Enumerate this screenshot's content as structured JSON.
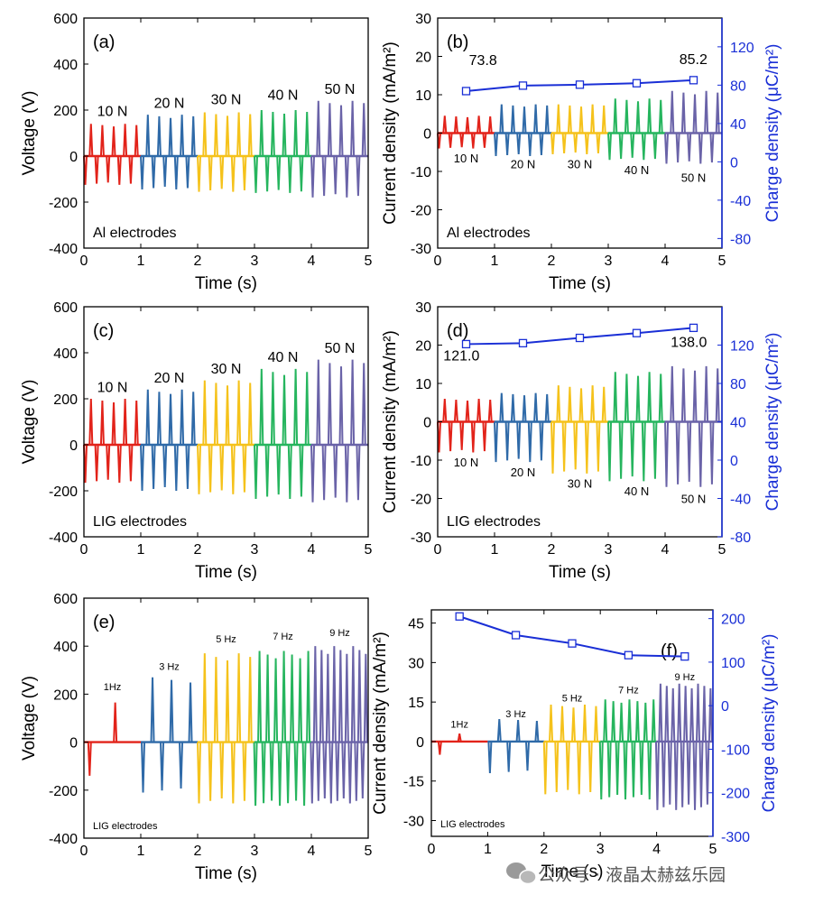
{
  "colors": {
    "red": "#e2231a",
    "blue": "#2f6aa8",
    "yellow": "#f5c21b",
    "green": "#26b55e",
    "purple": "#6a63a8",
    "charge": "#1a2fd6",
    "axis": "#000000"
  },
  "watermark": {
    "text": "公众号 · 液晶太赫兹乐园",
    "icon": "wechat-icon"
  },
  "chart_data": [
    {
      "id": "a",
      "type": "line",
      "panel_label": "(a)",
      "xlabel": "Time (s)",
      "ylabel": "Voltage (V)",
      "xlim": [
        0,
        5
      ],
      "ylim": [
        -400,
        600
      ],
      "xticks": [
        0,
        1,
        2,
        3,
        4,
        5
      ],
      "yticks": [
        -400,
        -200,
        0,
        200,
        400,
        600
      ],
      "annotation": "Al electrodes",
      "label_size": "medium",
      "segments": [
        {
          "name": "10 N",
          "color": "red",
          "t0": 0,
          "t1": 1,
          "n": 5,
          "pos": 140,
          "neg": -125,
          "label_y": 195
        },
        {
          "name": "20 N",
          "color": "blue",
          "t0": 1,
          "t1": 2,
          "n": 5,
          "pos": 180,
          "neg": -145,
          "label_y": 230
        },
        {
          "name": "30 N",
          "color": "yellow",
          "t0": 2,
          "t1": 3,
          "n": 5,
          "pos": 190,
          "neg": -155,
          "label_y": 245
        },
        {
          "name": "40 N",
          "color": "green",
          "t0": 3,
          "t1": 4,
          "n": 5,
          "pos": 200,
          "neg": -160,
          "label_y": 265
        },
        {
          "name": "50 N",
          "color": "purple",
          "t0": 4,
          "t1": 5,
          "n": 5,
          "pos": 240,
          "neg": -180,
          "label_y": 290
        }
      ]
    },
    {
      "id": "b",
      "type": "line",
      "panel_label": "(b)",
      "xlabel": "Time (s)",
      "ylabel": "Current density (mA/m²)",
      "y2label": "Charge density (μC/m²)",
      "xlim": [
        0,
        5
      ],
      "ylim": [
        -30,
        30
      ],
      "y2lim": [
        -90,
        150
      ],
      "xticks": [
        0,
        1,
        2,
        3,
        4,
        5
      ],
      "yticks": [
        -30,
        -20,
        -10,
        0,
        10,
        20,
        30
      ],
      "y2ticks": [
        -80,
        -40,
        0,
        40,
        80,
        120
      ],
      "annotation": "Al electrodes",
      "label_size": "medium",
      "segments": [
        {
          "name": "10 N",
          "color": "red",
          "t0": 0,
          "t1": 1,
          "n": 5,
          "pos": 4.5,
          "neg": -4,
          "label_y": -6.5
        },
        {
          "name": "20 N",
          "color": "blue",
          "t0": 1,
          "t1": 2,
          "n": 5,
          "pos": 7.5,
          "neg": -6,
          "label_y": -8
        },
        {
          "name": "30 N",
          "color": "yellow",
          "t0": 2,
          "t1": 3,
          "n": 5,
          "pos": 7.5,
          "neg": -5.5,
          "label_y": -8
        },
        {
          "name": "40 N",
          "color": "green",
          "t0": 3,
          "t1": 4,
          "n": 5,
          "pos": 9,
          "neg": -7,
          "label_y": -9.5
        },
        {
          "name": "50 N",
          "color": "purple",
          "t0": 4,
          "t1": 5,
          "n": 5,
          "pos": 11,
          "neg": -8,
          "label_y": -11.5
        }
      ],
      "charge": {
        "x": [
          0.5,
          1.5,
          2.5,
          3.5,
          4.5
        ],
        "values": [
          73.8,
          79.5,
          80.5,
          82.0,
          85.2
        ]
      },
      "value_labels": [
        {
          "text": "73.8",
          "x": 0.55,
          "y": 101
        },
        {
          "text": "85.2",
          "x": 4.25,
          "y": 102
        }
      ]
    },
    {
      "id": "c",
      "type": "line",
      "panel_label": "(c)",
      "xlabel": "Time (s)",
      "ylabel": "Voltage (V)",
      "xlim": [
        0,
        5
      ],
      "ylim": [
        -400,
        600
      ],
      "xticks": [
        0,
        1,
        2,
        3,
        4,
        5
      ],
      "yticks": [
        -400,
        -200,
        0,
        200,
        400,
        600
      ],
      "annotation": "LIG electrodes",
      "label_size": "medium",
      "segments": [
        {
          "name": "10 N",
          "color": "red",
          "t0": 0,
          "t1": 1,
          "n": 5,
          "pos": 200,
          "neg": -165,
          "label_y": 250
        },
        {
          "name": "20 N",
          "color": "blue",
          "t0": 1,
          "t1": 2,
          "n": 5,
          "pos": 240,
          "neg": -200,
          "label_y": 290
        },
        {
          "name": "30 N",
          "color": "yellow",
          "t0": 2,
          "t1": 3,
          "n": 5,
          "pos": 280,
          "neg": -215,
          "label_y": 330
        },
        {
          "name": "40 N",
          "color": "green",
          "t0": 3,
          "t1": 4,
          "n": 5,
          "pos": 330,
          "neg": -235,
          "label_y": 380
        },
        {
          "name": "50 N",
          "color": "purple",
          "t0": 4,
          "t1": 5,
          "n": 5,
          "pos": 370,
          "neg": -250,
          "label_y": 420
        }
      ]
    },
    {
      "id": "d",
      "type": "line",
      "panel_label": "(d)",
      "xlabel": "Time (s)",
      "ylabel": "Current density (mA/m²)",
      "y2label": "Charge density (μC/m²)",
      "xlim": [
        0,
        5
      ],
      "ylim": [
        -30,
        30
      ],
      "y2lim": [
        -80,
        160
      ],
      "xticks": [
        0,
        1,
        2,
        3,
        4,
        5
      ],
      "yticks": [
        -30,
        -20,
        -10,
        0,
        10,
        20,
        30
      ],
      "y2ticks": [
        -80,
        -40,
        0,
        40,
        80,
        120
      ],
      "annotation": "LIG electrodes",
      "label_size": "medium",
      "segments": [
        {
          "name": "10 N",
          "color": "red",
          "t0": 0,
          "t1": 1,
          "n": 5,
          "pos": 6,
          "neg": -8,
          "label_y": -10.5
        },
        {
          "name": "20 N",
          "color": "blue",
          "t0": 1,
          "t1": 2,
          "n": 5,
          "pos": 7.5,
          "neg": -10.5,
          "label_y": -13
        },
        {
          "name": "30 N",
          "color": "yellow",
          "t0": 2,
          "t1": 3,
          "n": 5,
          "pos": 9.5,
          "neg": -13.5,
          "label_y": -16
        },
        {
          "name": "40 N",
          "color": "green",
          "t0": 3,
          "t1": 4,
          "n": 5,
          "pos": 13,
          "neg": -15.5,
          "label_y": -18
        },
        {
          "name": "50 N",
          "color": "purple",
          "t0": 4,
          "t1": 5,
          "n": 5,
          "pos": 14.5,
          "neg": -17,
          "label_y": -20
        }
      ],
      "charge": {
        "x": [
          0.5,
          1.5,
          2.5,
          3.5,
          4.5
        ],
        "values": [
          121.0,
          122.0,
          127.5,
          132.5,
          138.0
        ]
      },
      "value_labels": [
        {
          "text": "121.0",
          "x": 0.1,
          "y": 104
        },
        {
          "text": "138.0",
          "x": 4.1,
          "y": 118
        }
      ]
    },
    {
      "id": "e",
      "type": "line",
      "panel_label": "(e)",
      "xlabel": "Time (s)",
      "ylabel": "Voltage (V)",
      "xlim": [
        0,
        5
      ],
      "ylim": [
        -400,
        600
      ],
      "xticks": [
        0,
        1,
        2,
        3,
        4,
        5
      ],
      "yticks": [
        -400,
        -200,
        0,
        200,
        400,
        600
      ],
      "annotation": "LIG electrodes",
      "label_size": "small",
      "segments": [
        {
          "name": "1Hz",
          "color": "red",
          "t0": 0,
          "t1": 1,
          "n": 1,
          "pos": 165,
          "neg": -140,
          "label_y": 235,
          "pos_x": 0.55,
          "neg_x": 0.1
        },
        {
          "name": "3 Hz",
          "color": "blue",
          "t0": 1,
          "t1": 2,
          "n": 3,
          "pos": 270,
          "neg": -210,
          "label_y": 320
        },
        {
          "name": "5 Hz",
          "color": "yellow",
          "t0": 2,
          "t1": 3,
          "n": 5,
          "pos": 370,
          "neg": -255,
          "label_y": 435
        },
        {
          "name": "7 Hz",
          "color": "green",
          "t0": 3,
          "t1": 4,
          "n": 7,
          "pos": 380,
          "neg": -265,
          "label_y": 445
        },
        {
          "name": "9 Hz",
          "color": "purple",
          "t0": 4,
          "t1": 5,
          "n": 9,
          "pos": 400,
          "neg": -255,
          "label_y": 460
        }
      ]
    },
    {
      "id": "f",
      "type": "line",
      "panel_label": "(f)",
      "xlabel": "Time (s)",
      "ylabel": "Current density (mA/m²)",
      "y2label": "Charge density (μC/m²)",
      "xlim": [
        0,
        5
      ],
      "ylim": [
        -36,
        50
      ],
      "y2lim": [
        -300,
        220
      ],
      "xticks": [
        0,
        1,
        2,
        3,
        4,
        5
      ],
      "yticks": [
        -30,
        -15,
        0,
        15,
        30,
        45
      ],
      "y2ticks": [
        -300,
        -200,
        -100,
        0,
        100,
        200
      ],
      "annotation": "LIG electrodes",
      "label_size": "small",
      "segments": [
        {
          "name": "1Hz",
          "color": "red",
          "t0": 0,
          "t1": 1,
          "n": 1,
          "pos": 3,
          "neg": -5,
          "label_y": 7,
          "pos_x": 0.5,
          "neg_x": 0.15
        },
        {
          "name": "3 Hz",
          "color": "blue",
          "t0": 1,
          "t1": 2,
          "n": 3,
          "pos": 8.5,
          "neg": -12,
          "label_y": 11
        },
        {
          "name": "5 Hz",
          "color": "yellow",
          "t0": 2,
          "t1": 3,
          "n": 5,
          "pos": 14,
          "neg": -20,
          "label_y": 17
        },
        {
          "name": "7 Hz",
          "color": "green",
          "t0": 3,
          "t1": 4,
          "n": 7,
          "pos": 16,
          "neg": -22,
          "label_y": 20
        },
        {
          "name": "9 Hz",
          "color": "purple",
          "t0": 4,
          "t1": 5,
          "n": 9,
          "pos": 22,
          "neg": -26,
          "label_y": 25
        }
      ],
      "charge": {
        "x": [
          0.5,
          1.5,
          2.5,
          3.5,
          4.5
        ],
        "values": [
          205,
          162,
          143,
          116,
          113
        ]
      },
      "value_labels": []
    }
  ]
}
